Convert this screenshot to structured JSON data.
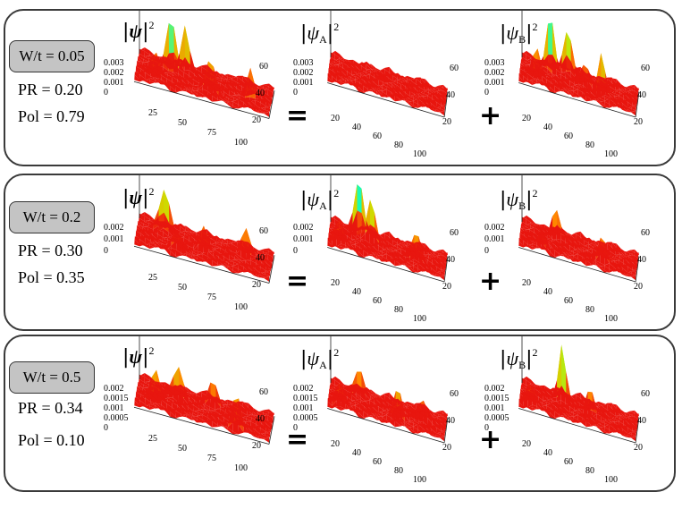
{
  "operators": {
    "equals": "=",
    "plus": "+"
  },
  "titles": {
    "total": "ψ",
    "sublattice_a": "A",
    "sublattice_b": "B",
    "exponent": "2"
  },
  "colors": {
    "low": "#e8160f",
    "mid": "#ff8800",
    "mid2": "#c8e600",
    "high": "#00ffd0",
    "peak": "#1a1aff",
    "top": "#e000e0"
  },
  "panels": [
    {
      "disorder_label": "W/t = 0.05",
      "pr_label": "PR = 0.20",
      "pol_label": "Pol = 0.79",
      "total_z_ticks": [
        "0.003",
        "0.002",
        "0.001",
        "0"
      ],
      "total_x_ticks": [
        "25",
        "50",
        "75",
        "100"
      ],
      "total_y_ticks": [
        "60",
        "40",
        "20"
      ],
      "a_z_ticks": [
        "0.003",
        "0.002",
        "0.001",
        "0"
      ],
      "a_x_ticks": [
        "20",
        "40",
        "60",
        "80",
        "100"
      ],
      "a_y_ticks": [
        "60",
        "40",
        "20"
      ],
      "b_z_ticks": [
        "0.003",
        "0.002",
        "0.001",
        "0"
      ],
      "b_x_ticks": [
        "20",
        "40",
        "60",
        "80",
        "100"
      ],
      "b_y_ticks": [
        "60",
        "40",
        "20"
      ]
    },
    {
      "disorder_label": "W/t = 0.2",
      "pr_label": "PR = 0.30",
      "pol_label": "Pol = 0.35",
      "total_z_ticks": [
        "0.002",
        "0.001",
        "0"
      ],
      "total_x_ticks": [
        "25",
        "50",
        "75",
        "100"
      ],
      "total_y_ticks": [
        "60",
        "40",
        "20"
      ],
      "a_z_ticks": [
        "0.002",
        "0.001",
        "0"
      ],
      "a_x_ticks": [
        "20",
        "40",
        "60",
        "80",
        "100"
      ],
      "a_y_ticks": [
        "60",
        "40",
        "20"
      ],
      "b_z_ticks": [
        "0.002",
        "0.001",
        "0"
      ],
      "b_x_ticks": [
        "20",
        "40",
        "60",
        "80",
        "100"
      ],
      "b_y_ticks": [
        "60",
        "40",
        "20"
      ]
    },
    {
      "disorder_label": "W/t = 0.5",
      "pr_label": "PR = 0.34",
      "pol_label": "Pol = 0.10",
      "total_z_ticks": [
        "0.002",
        "0.0015",
        "0.001",
        "0.0005",
        "0"
      ],
      "total_x_ticks": [
        "25",
        "50",
        "75",
        "100"
      ],
      "total_y_ticks": [
        "60",
        "40",
        "20"
      ],
      "a_z_ticks": [
        "0.002",
        "0.0015",
        "0.001",
        "0.0005",
        "0"
      ],
      "a_x_ticks": [
        "20",
        "40",
        "60",
        "80",
        "100"
      ],
      "a_y_ticks": [
        "60",
        "40",
        "20"
      ],
      "b_z_ticks": [
        "0.002",
        "0.0015",
        "0.001",
        "0.0005",
        "0"
      ],
      "b_x_ticks": [
        "20",
        "40",
        "60",
        "80",
        "100"
      ],
      "b_y_ticks": [
        "60",
        "40",
        "20"
      ]
    }
  ]
}
